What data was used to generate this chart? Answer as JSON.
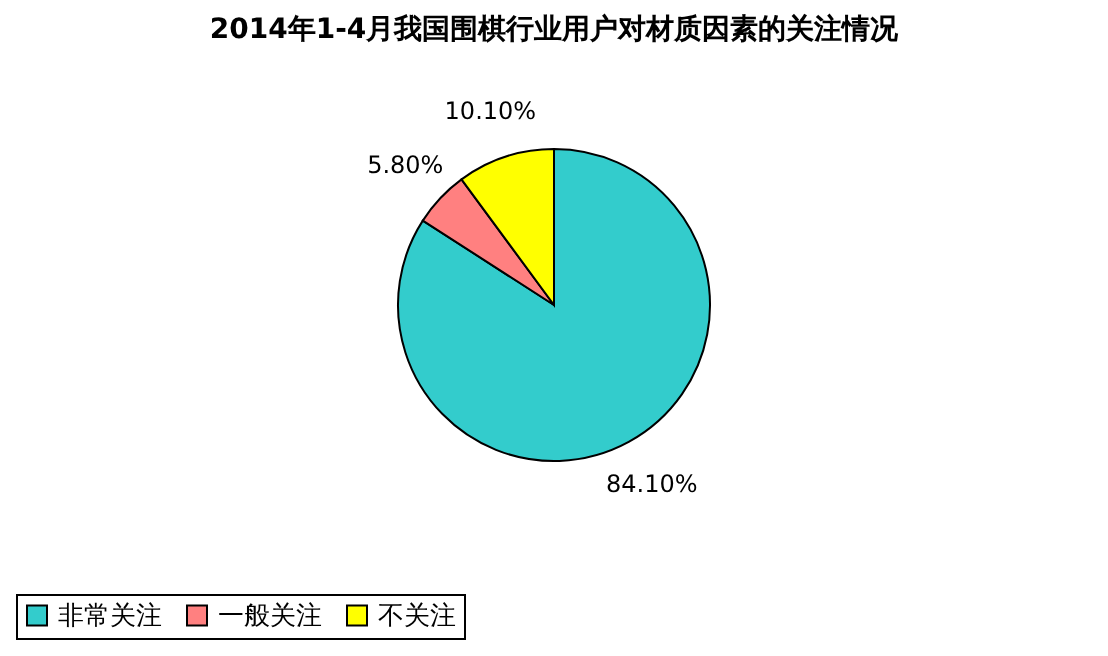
{
  "chart_data": {
    "type": "pie",
    "title": "2014年1-4月我国围棋行业用户对材质因素的关注情况",
    "categories": [
      "非常关注",
      "一般关注",
      "不关注"
    ],
    "values": [
      84.1,
      5.8,
      10.1
    ],
    "colors": [
      "#33cccc",
      "#ff8080",
      "#ffff00"
    ],
    "value_labels": [
      "84.10%",
      "5.80%",
      "10.10%"
    ],
    "legend": "bottom"
  }
}
